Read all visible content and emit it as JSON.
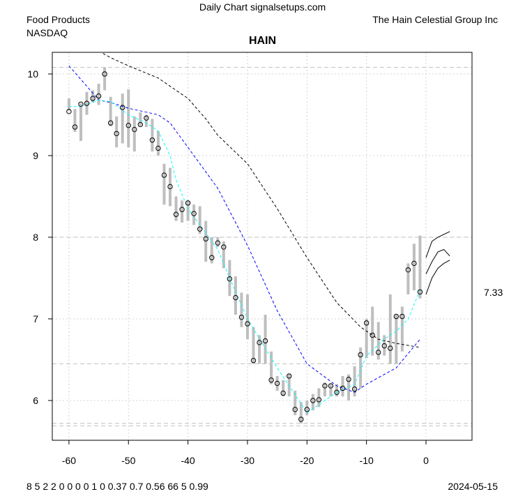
{
  "header": {
    "title": "Daily Chart signalsetups.com",
    "sector": "Food Products",
    "exchange": "NASDAQ",
    "company": "The Hain Celestial Group Inc"
  },
  "footer": {
    "stats": "8 5   2 2 0 0 0 0     1 0   0.37 0.7 0.56   66 5 0.99",
    "date": "2024-05-15"
  },
  "chart_data": {
    "type": "line",
    "title": "HAIN",
    "xlim": [
      -61,
      7.5
    ],
    "ylim": [
      5.55,
      10.25
    ],
    "xticks": [
      -60,
      -50,
      -40,
      -30,
      -20,
      -10,
      0
    ],
    "yticks": [
      6,
      7,
      8,
      9,
      10
    ],
    "last_price_label": "7.33",
    "last_price": 7.33,
    "colors": {
      "bars": "#bebebe",
      "ma_long": "#000000",
      "ma_mid": "#0000ff",
      "ma_short": "#00ffff"
    },
    "hlines": [
      10.08,
      8.0,
      6.45,
      5.72,
      5.69
    ],
    "x": [
      -60,
      -59,
      -58,
      -57,
      -56,
      -55,
      -54,
      -53,
      -52,
      -51,
      -50,
      -49,
      -48,
      -47,
      -46,
      -45,
      -44,
      -43,
      -42,
      -41,
      -40,
      -39,
      -38,
      -37,
      -36,
      -35,
      -34,
      -33,
      -32,
      -31,
      -30,
      -29,
      -28,
      -27,
      -26,
      -25,
      -24,
      -23,
      -22,
      -21,
      -20,
      -19,
      -18,
      -17,
      -16,
      -15,
      -14,
      -13,
      -12,
      -11,
      -10,
      -9,
      -8,
      -7,
      -6,
      -5,
      -4,
      -3,
      -2,
      -1
    ],
    "close": [
      9.54,
      9.35,
      9.63,
      9.64,
      9.7,
      9.73,
      10.0,
      9.4,
      9.27,
      9.59,
      9.37,
      9.32,
      9.38,
      9.46,
      9.19,
      9.09,
      8.76,
      8.62,
      8.28,
      8.34,
      8.42,
      8.29,
      8.1,
      7.98,
      7.75,
      7.93,
      7.88,
      7.49,
      7.26,
      7.02,
      6.94,
      6.49,
      6.71,
      6.73,
      6.25,
      6.21,
      6.09,
      6.3,
      5.89,
      5.77,
      5.89,
      6.0,
      6.01,
      6.18,
      6.18,
      6.1,
      6.15,
      6.26,
      6.14,
      6.56,
      6.95,
      6.8,
      6.59,
      6.67,
      6.64,
      7.03,
      7.03,
      7.6,
      7.68,
      7.33
    ],
    "high": [
      9.7,
      9.57,
      9.64,
      9.78,
      9.8,
      9.88,
      10.08,
      9.72,
      9.48,
      9.76,
      9.81,
      9.48,
      9.53,
      9.5,
      9.45,
      9.3,
      8.9,
      8.85,
      8.5,
      8.45,
      8.45,
      8.4,
      8.38,
      8.2,
      8.0,
      8.0,
      7.95,
      7.72,
      7.52,
      7.32,
      7.3,
      6.9,
      6.8,
      7.05,
      6.6,
      6.3,
      6.25,
      6.32,
      6.12,
      5.98,
      6.0,
      6.08,
      6.15,
      6.22,
      6.2,
      6.2,
      6.3,
      6.32,
      6.42,
      6.65,
      7.0,
      7.15,
      6.96,
      6.8,
      7.3,
      7.05,
      7.15,
      7.68,
      7.92,
      8.02
    ],
    "low": [
      9.55,
      9.29,
      9.18,
      9.5,
      9.65,
      9.62,
      9.8,
      9.36,
      9.1,
      9.15,
      9.1,
      9.05,
      9.36,
      9.35,
      9.05,
      9.0,
      8.4,
      8.38,
      8.2,
      8.18,
      8.2,
      8.15,
      8.04,
      7.7,
      7.68,
      7.88,
      7.62,
      7.28,
      7.05,
      6.9,
      6.75,
      6.45,
      6.45,
      6.45,
      6.2,
      6.12,
      6.05,
      6.05,
      5.82,
      5.72,
      5.82,
      5.88,
      5.92,
      6.05,
      6.05,
      6.05,
      6.05,
      6.0,
      6.05,
      6.15,
      6.52,
      6.55,
      6.5,
      6.55,
      6.45,
      6.45,
      6.6,
      7.3,
      7.35,
      7.25
    ],
    "ma_long": [
      [
        -55,
        10.28
      ],
      [
        -53,
        10.2
      ],
      [
        -50,
        10.1
      ],
      [
        -45,
        9.95
      ],
      [
        -40,
        9.7
      ],
      [
        -37,
        9.45
      ],
      [
        -35,
        9.25
      ],
      [
        -30,
        8.9
      ],
      [
        -25,
        8.35
      ],
      [
        -20,
        7.75
      ],
      [
        -15,
        7.2
      ],
      [
        -11,
        6.9
      ],
      [
        -8,
        6.75
      ],
      [
        -5,
        6.7
      ],
      [
        -1,
        6.65
      ]
    ],
    "ma_mid": [
      [
        -60,
        10.1
      ],
      [
        -57,
        9.85
      ],
      [
        -55,
        9.68
      ],
      [
        -53,
        9.65
      ],
      [
        -50,
        9.58
      ],
      [
        -45,
        9.5
      ],
      [
        -43,
        9.4
      ],
      [
        -40,
        9.1
      ],
      [
        -35,
        8.6
      ],
      [
        -30,
        7.9
      ],
      [
        -25,
        7.1
      ],
      [
        -20,
        6.45
      ],
      [
        -15,
        6.18
      ],
      [
        -12,
        6.1
      ],
      [
        -10,
        6.2
      ],
      [
        -5,
        6.4
      ],
      [
        -1,
        6.75
      ]
    ],
    "ma_short": [
      [
        -60,
        9.6
      ],
      [
        -58,
        9.6
      ],
      [
        -55,
        9.68
      ],
      [
        -53,
        9.66
      ],
      [
        -50,
        9.5
      ],
      [
        -47,
        9.4
      ],
      [
        -45,
        9.3
      ],
      [
        -43,
        9.0
      ],
      [
        -42,
        8.7
      ],
      [
        -40,
        8.35
      ],
      [
        -35,
        7.85
      ],
      [
        -33,
        7.5
      ],
      [
        -30,
        7.0
      ],
      [
        -25,
        6.4
      ],
      [
        -20,
        5.85
      ],
      [
        -18,
        5.95
      ],
      [
        -15,
        6.1
      ],
      [
        -12,
        6.2
      ],
      [
        -10,
        6.55
      ],
      [
        -7,
        6.75
      ],
      [
        -5,
        6.85
      ],
      [
        -3,
        7.0
      ],
      [
        -1,
        7.35
      ]
    ],
    "projections": [
      [
        [
          0,
          7.75
        ],
        [
          1,
          7.95
        ],
        [
          2,
          8.0
        ],
        [
          4,
          8.07
        ]
      ],
      [
        [
          0,
          7.55
        ],
        [
          1,
          7.7
        ],
        [
          2,
          7.82
        ],
        [
          3,
          7.85
        ],
        [
          4,
          7.77
        ]
      ],
      [
        [
          0,
          7.3
        ],
        [
          1,
          7.5
        ],
        [
          2,
          7.62
        ],
        [
          3,
          7.68
        ],
        [
          4,
          7.72
        ]
      ]
    ]
  }
}
